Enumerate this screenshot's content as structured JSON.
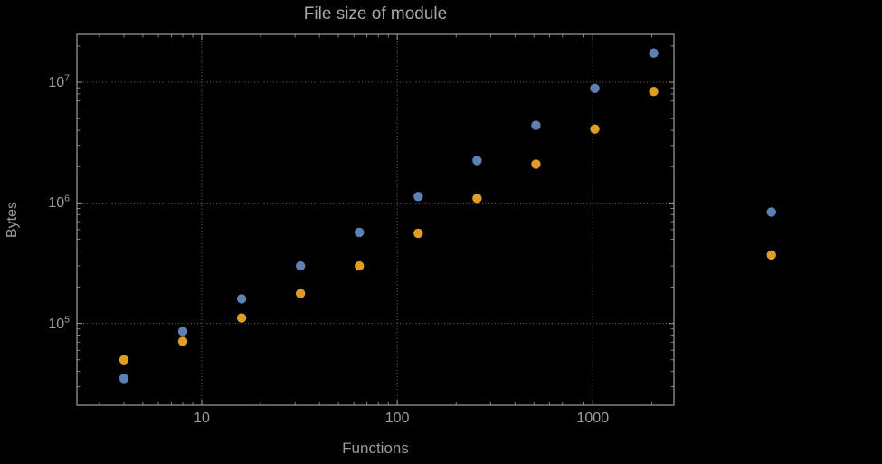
{
  "chart": {
    "title": "File size of module",
    "xlabel": "Functions",
    "ylabel": "Bytes"
  },
  "chart_data": {
    "type": "scatter",
    "x_scale": "log",
    "y_scale": "log",
    "title": "File size of module",
    "xlabel": "Functions",
    "ylabel": "Bytes",
    "x": [
      4,
      8,
      16,
      32,
      64,
      128,
      256,
      512,
      1024,
      2048,
      8192
    ],
    "series": [
      {
        "name": "blue",
        "color": "#5e81b5",
        "values": [
          35000,
          86000,
          160000,
          300000,
          570000,
          1130000,
          2250000,
          4400000,
          8900000,
          17500000,
          840000
        ]
      },
      {
        "name": "orange",
        "color": "#e09c24",
        "values": [
          50000,
          71000,
          111000,
          177000,
          300000,
          560000,
          1090000,
          2100000,
          4100000,
          8400000,
          370000
        ]
      }
    ],
    "x_ticks": [
      10,
      100,
      1000
    ],
    "x_tick_labels": [
      "10",
      "100",
      "1000"
    ],
    "y_ticks": [
      100000,
      1000000,
      10000000
    ],
    "y_tick_labels": [
      {
        "base": "10",
        "exp": "5"
      },
      {
        "base": "10",
        "exp": "6"
      },
      {
        "base": "10",
        "exp": "7"
      }
    ],
    "x_range": [
      2.3,
      2600
    ],
    "y_range": [
      21000,
      25000000
    ],
    "grid": "dotted",
    "legend": "none"
  },
  "style": {
    "background": "#000000",
    "frame_color": "#9e9e9e",
    "grid_color": "#6e6e6e",
    "text_color": "#9d9d9d",
    "point_colors": {
      "blue": "#5e81b5",
      "orange": "#e09c24"
    }
  }
}
